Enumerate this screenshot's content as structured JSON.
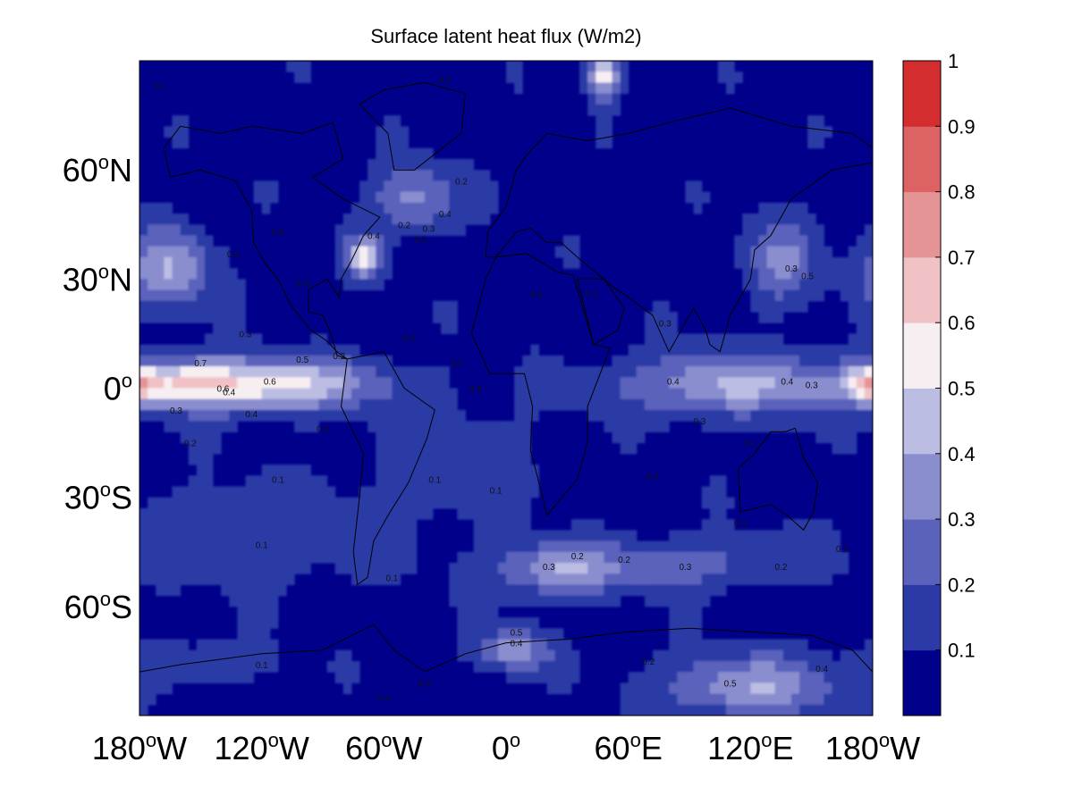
{
  "chart_data": {
    "type": "heatmap",
    "title": "Surface latent heat flux (W/m2)",
    "xlabel": "",
    "ylabel": "",
    "xlim": [
      -180,
      180
    ],
    "ylim": [
      -90,
      90
    ],
    "x_ticks": [
      {
        "value": -180,
        "num": "180",
        "sup": "o",
        "hem": "W"
      },
      {
        "value": -120,
        "num": "120",
        "sup": "o",
        "hem": "W"
      },
      {
        "value": -60,
        "num": "60",
        "sup": "o",
        "hem": "W"
      },
      {
        "value": 0,
        "num": "0",
        "sup": "o",
        "hem": ""
      },
      {
        "value": 60,
        "num": "60",
        "sup": "o",
        "hem": "E"
      },
      {
        "value": 120,
        "num": "120",
        "sup": "o",
        "hem": "E"
      },
      {
        "value": 180,
        "num": "180",
        "sup": "o",
        "hem": "W"
      }
    ],
    "y_ticks": [
      {
        "value": 60,
        "num": "60",
        "sup": "o",
        "hem": "N"
      },
      {
        "value": 30,
        "num": "30",
        "sup": "o",
        "hem": "N"
      },
      {
        "value": 0,
        "num": "0",
        "sup": "o",
        "hem": ""
      },
      {
        "value": -30,
        "num": "30",
        "sup": "o",
        "hem": "S"
      },
      {
        "value": -60,
        "num": "60",
        "sup": "o",
        "hem": "S"
      }
    ],
    "colorbar": {
      "levels": [
        0,
        0.1,
        0.2,
        0.3,
        0.4,
        0.5,
        0.6,
        0.7,
        0.8,
        0.9,
        1.0
      ],
      "tick_labels": [
        "0.1",
        "0.2",
        "0.3",
        "0.4",
        "0.5",
        "0.6",
        "0.7",
        "0.8",
        "0.9",
        "1"
      ],
      "colors": [
        "#00008b",
        "#2b3aa6",
        "#5a62bb",
        "#8a8ecf",
        "#bbbde3",
        "#f7eef2",
        "#f0c2c5",
        "#e59496",
        "#dc6264",
        "#d42d2f"
      ]
    },
    "fields": [
      {
        "name": "equatorial-pacific",
        "lon": -125,
        "lat": 1,
        "sx": 42,
        "sy": 5,
        "amp": 0.52
      },
      {
        "name": "pacific-itcz-west",
        "lon": -165,
        "lat": 2,
        "sx": 18,
        "sy": 4,
        "amp": 0.18
      },
      {
        "name": "north-pacific",
        "lon": -165,
        "lat": 33,
        "sx": 14,
        "sy": 8,
        "amp": 0.33
      },
      {
        "name": "gulf-stream",
        "lon": -70,
        "lat": 36,
        "sx": 6,
        "sy": 4,
        "amp": 0.45
      },
      {
        "name": "north-atlantic",
        "lon": -45,
        "lat": 52,
        "sx": 14,
        "sy": 6,
        "amp": 0.28
      },
      {
        "name": "norwegian-sea",
        "lon": 48,
        "lat": 86,
        "sx": 5,
        "sy": 4,
        "amp": 0.5
      },
      {
        "name": "indo-pacific-warm-pool",
        "lon": 110,
        "lat": 1,
        "sx": 38,
        "sy": 6,
        "amp": 0.34
      },
      {
        "name": "date-line-equator",
        "lon": 178,
        "lat": 1,
        "sx": 6,
        "sy": 3,
        "amp": 0.35
      },
      {
        "name": "southern-ocean-1",
        "lon": 25,
        "lat": -50,
        "sx": 22,
        "sy": 5,
        "amp": 0.32
      },
      {
        "name": "southern-ocean-2",
        "lon": 90,
        "lat": -48,
        "sx": 30,
        "sy": 5,
        "amp": 0.18
      },
      {
        "name": "antarctic-coast-1",
        "lon": 5,
        "lat": -72,
        "sx": 12,
        "sy": 4,
        "amp": 0.3
      },
      {
        "name": "antarctic-coast-2",
        "lon": 120,
        "lat": -82,
        "sx": 30,
        "sy": 6,
        "amp": 0.32
      },
      {
        "name": "antarctic-coast-3",
        "lon": -150,
        "lat": -75,
        "sx": 25,
        "sy": 4,
        "amp": 0.12
      },
      {
        "name": "south-atlantic",
        "lon": -25,
        "lat": -20,
        "sx": 25,
        "sy": 10,
        "amp": 0.12
      },
      {
        "name": "mid-latitude-south",
        "lon": -120,
        "lat": -40,
        "sx": 50,
        "sy": 10,
        "amp": 0.1
      },
      {
        "name": "east-asia",
        "lon": 135,
        "lat": 35,
        "sx": 12,
        "sy": 8,
        "amp": 0.25
      }
    ],
    "contour_labels": [
      {
        "lon": -134,
        "lat": 36,
        "text": "0.5"
      },
      {
        "lon": -112,
        "lat": 42,
        "text": "0.5"
      },
      {
        "lon": -128,
        "lat": 14,
        "text": "0.3"
      },
      {
        "lon": -150,
        "lat": 6,
        "text": "0.7"
      },
      {
        "lon": -116,
        "lat": 1,
        "text": "0.6"
      },
      {
        "lon": -100,
        "lat": 7,
        "text": "0.5"
      },
      {
        "lon": -139,
        "lat": -1,
        "text": "0.6"
      },
      {
        "lon": -136,
        "lat": -2,
        "text": "0.4"
      },
      {
        "lon": -125,
        "lat": -8,
        "text": "0.4"
      },
      {
        "lon": -162,
        "lat": -7,
        "text": "0.3"
      },
      {
        "lon": -155,
        "lat": -16,
        "text": "0.2"
      },
      {
        "lon": -90,
        "lat": -12,
        "text": "0.3"
      },
      {
        "lon": -112,
        "lat": -26,
        "text": "0.1"
      },
      {
        "lon": -35,
        "lat": -26,
        "text": "0.1"
      },
      {
        "lon": -65,
        "lat": 41,
        "text": "0.4"
      },
      {
        "lon": -30,
        "lat": 47,
        "text": "0.4"
      },
      {
        "lon": -38,
        "lat": 43,
        "text": "0.3"
      },
      {
        "lon": -42,
        "lat": 40,
        "text": "0.2"
      },
      {
        "lon": -50,
        "lat": 44,
        "text": "0.2"
      },
      {
        "lon": -22,
        "lat": 56,
        "text": "0.2"
      },
      {
        "lon": -100,
        "lat": 28,
        "text": "0.3"
      },
      {
        "lon": -82,
        "lat": 8,
        "text": "0.2"
      },
      {
        "lon": -48,
        "lat": 13,
        "text": "0.3"
      },
      {
        "lon": -24,
        "lat": 6,
        "text": "0.1"
      },
      {
        "lon": -15,
        "lat": -1,
        "text": "0.3"
      },
      {
        "lon": 42,
        "lat": 25,
        "text": "0.2"
      },
      {
        "lon": 15,
        "lat": 25,
        "text": "0.1"
      },
      {
        "lon": 82,
        "lat": 1,
        "text": "0.4"
      },
      {
        "lon": 78,
        "lat": 17,
        "text": "0.3"
      },
      {
        "lon": 138,
        "lat": 1,
        "text": "0.4"
      },
      {
        "lon": 150,
        "lat": 0,
        "text": "0.3"
      },
      {
        "lon": 148,
        "lat": 30,
        "text": "0.5"
      },
      {
        "lon": 140,
        "lat": 32,
        "text": "0.3"
      },
      {
        "lon": 95,
        "lat": -10,
        "text": "0.3"
      },
      {
        "lon": 120,
        "lat": -16,
        "text": "0.1"
      },
      {
        "lon": 72,
        "lat": -25,
        "text": "0.2"
      },
      {
        "lon": 115,
        "lat": -38,
        "text": "0.1"
      },
      {
        "lon": -5,
        "lat": -29,
        "text": "0.1"
      },
      {
        "lon": 21,
        "lat": -50,
        "text": "0.3"
      },
      {
        "lon": 35,
        "lat": -47,
        "text": "0.2"
      },
      {
        "lon": 58,
        "lat": -48,
        "text": "0.2"
      },
      {
        "lon": 88,
        "lat": -50,
        "text": "0.3"
      },
      {
        "lon": 135,
        "lat": -50,
        "text": "0.2"
      },
      {
        "lon": 165,
        "lat": -45,
        "text": "0.1"
      },
      {
        "lon": -56,
        "lat": -53,
        "text": "0.1"
      },
      {
        "lon": -120,
        "lat": -44,
        "text": "0.1"
      },
      {
        "lon": 5,
        "lat": -68,
        "text": "0.5"
      },
      {
        "lon": 5,
        "lat": -71,
        "text": "0.4"
      },
      {
        "lon": 70,
        "lat": -76,
        "text": "0.2"
      },
      {
        "lon": -60,
        "lat": -86,
        "text": "0.4"
      },
      {
        "lon": -40,
        "lat": -82,
        "text": "0.3"
      },
      {
        "lon": 110,
        "lat": -82,
        "text": "0.5"
      },
      {
        "lon": 155,
        "lat": -78,
        "text": "0.4"
      },
      {
        "lon": -120,
        "lat": -77,
        "text": "0.1"
      },
      {
        "lon": -170,
        "lat": 82,
        "text": "0.1"
      },
      {
        "lon": -30,
        "lat": 84,
        "text": "0.2"
      },
      {
        "lon": 50,
        "lat": 90,
        "text": "0.3"
      }
    ],
    "continents": [
      {
        "name": "north-america",
        "lat": [
          [
            -168,
            66
          ],
          [
            -160,
            72
          ],
          [
            -140,
            70
          ],
          [
            -125,
            72
          ],
          [
            -100,
            70
          ],
          [
            -85,
            73
          ],
          [
            -80,
            63
          ],
          [
            -95,
            58
          ],
          [
            -80,
            52
          ],
          [
            -62,
            47
          ],
          [
            -70,
            42
          ],
          [
            -76,
            35
          ],
          [
            -81,
            30
          ],
          [
            -82,
            25
          ],
          [
            -88,
            30
          ],
          [
            -97,
            27
          ],
          [
            -97,
            21
          ],
          [
            -90,
            20
          ],
          [
            -86,
            15
          ],
          [
            -83,
            9
          ],
          [
            -78,
            8
          ],
          [
            -83,
            10
          ],
          [
            -88,
            13
          ],
          [
            -96,
            16
          ],
          [
            -106,
            23
          ],
          [
            -112,
            30
          ],
          [
            -118,
            34
          ],
          [
            -124,
            40
          ],
          [
            -125,
            49
          ],
          [
            -133,
            57
          ],
          [
            -150,
            60
          ],
          [
            -165,
            58
          ],
          [
            -168,
            66
          ]
        ]
      },
      {
        "name": "greenland",
        "lat": [
          [
            -55,
            60
          ],
          [
            -45,
            60
          ],
          [
            -22,
            70
          ],
          [
            -20,
            81
          ],
          [
            -40,
            84
          ],
          [
            -60,
            82
          ],
          [
            -72,
            78
          ],
          [
            -58,
            70
          ],
          [
            -55,
            60
          ]
        ]
      },
      {
        "name": "south-america",
        "lat": [
          [
            -78,
            8
          ],
          [
            -60,
            10
          ],
          [
            -50,
            0
          ],
          [
            -35,
            -6
          ],
          [
            -39,
            -14
          ],
          [
            -48,
            -26
          ],
          [
            -58,
            -35
          ],
          [
            -65,
            -42
          ],
          [
            -68,
            -52
          ],
          [
            -73,
            -54
          ],
          [
            -75,
            -45
          ],
          [
            -72,
            -30
          ],
          [
            -70,
            -18
          ],
          [
            -81,
            -5
          ],
          [
            -78,
            8
          ]
        ]
      },
      {
        "name": "africa",
        "lat": [
          [
            -17,
            15
          ],
          [
            -10,
            30
          ],
          [
            -5,
            36
          ],
          [
            10,
            37
          ],
          [
            25,
            32
          ],
          [
            33,
            31
          ],
          [
            43,
            12
          ],
          [
            51,
            11
          ],
          [
            40,
            -5
          ],
          [
            40,
            -15
          ],
          [
            35,
            -25
          ],
          [
            20,
            -35
          ],
          [
            18,
            -30
          ],
          [
            12,
            -17
          ],
          [
            13,
            -5
          ],
          [
            9,
            4
          ],
          [
            -8,
            4
          ],
          [
            -17,
            15
          ]
        ]
      },
      {
        "name": "eurasia",
        "lat": [
          [
            -10,
            36
          ],
          [
            -9,
            43
          ],
          [
            0,
            50
          ],
          [
            5,
            60
          ],
          [
            10,
            64
          ],
          [
            20,
            70
          ],
          [
            40,
            68
          ],
          [
            60,
            70
          ],
          [
            80,
            73
          ],
          [
            110,
            77
          ],
          [
            140,
            72
          ],
          [
            170,
            70
          ],
          [
            180,
            66
          ],
          [
            180,
            62
          ],
          [
            160,
            60
          ],
          [
            140,
            52
          ],
          [
            130,
            42
          ],
          [
            122,
            38
          ],
          [
            120,
            30
          ],
          [
            110,
            20
          ],
          [
            105,
            10
          ],
          [
            100,
            12
          ],
          [
            98,
            16
          ],
          [
            92,
            22
          ],
          [
            80,
            10
          ],
          [
            72,
            20
          ],
          [
            60,
            25
          ],
          [
            52,
            28
          ],
          [
            48,
            30
          ],
          [
            35,
            36
          ],
          [
            27,
            40
          ],
          [
            20,
            40
          ],
          [
            12,
            44
          ],
          [
            5,
            43
          ],
          [
            -5,
            36
          ],
          [
            -10,
            36
          ]
        ]
      },
      {
        "name": "arabia",
        "lat": [
          [
            35,
            30
          ],
          [
            43,
            12
          ],
          [
            55,
            16
          ],
          [
            58,
            22
          ],
          [
            48,
            30
          ],
          [
            35,
            30
          ]
        ]
      },
      {
        "name": "australia",
        "lat": [
          [
            114,
            -22
          ],
          [
            122,
            -18
          ],
          [
            130,
            -12
          ],
          [
            137,
            -12
          ],
          [
            142,
            -11
          ],
          [
            146,
            -19
          ],
          [
            153,
            -26
          ],
          [
            151,
            -34
          ],
          [
            146,
            -39
          ],
          [
            138,
            -35
          ],
          [
            130,
            -32
          ],
          [
            115,
            -34
          ],
          [
            114,
            -22
          ]
        ]
      },
      {
        "name": "antarctica",
        "lat": [
          [
            -180,
            -78
          ],
          [
            -160,
            -76
          ],
          [
            -120,
            -73
          ],
          [
            -90,
            -72
          ],
          [
            -65,
            -65
          ],
          [
            -55,
            -72
          ],
          [
            -40,
            -78
          ],
          [
            -20,
            -73
          ],
          [
            0,
            -70
          ],
          [
            30,
            -69
          ],
          [
            60,
            -67
          ],
          [
            90,
            -66
          ],
          [
            120,
            -67
          ],
          [
            150,
            -68
          ],
          [
            170,
            -72
          ],
          [
            180,
            -78
          ],
          [
            180,
            -90
          ],
          [
            -180,
            -90
          ],
          [
            -180,
            -78
          ]
        ]
      }
    ]
  }
}
